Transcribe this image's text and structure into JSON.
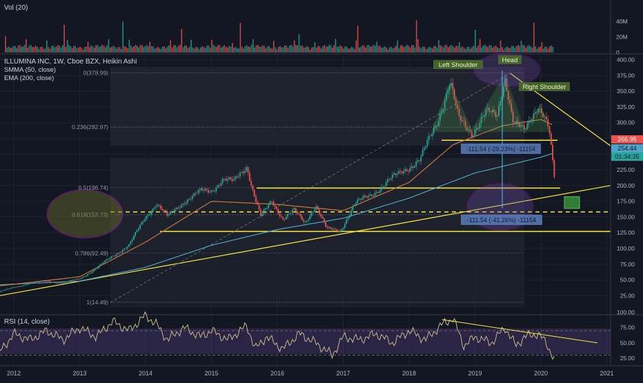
{
  "chart_data": [
    {
      "type": "bar",
      "title": "Vol (20)",
      "y_ticks": [
        "40M",
        "20M",
        "0"
      ],
      "ylim": [
        0,
        50
      ],
      "note_units": "millions"
    },
    {
      "type": "line",
      "symbol_header": "ILLUMINA INC, 1W, Cboe BZX, Heikin Ashi",
      "indicators": [
        "SMMA (50, close)",
        "EMA (200, close)"
      ],
      "x_ticks": [
        "2012",
        "2013",
        "2014",
        "2015",
        "2016",
        "2017",
        "2018",
        "2019",
        "2020",
        "2021"
      ],
      "y_ticks": [
        400,
        375,
        350,
        325,
        300,
        275,
        250,
        225,
        200,
        175,
        150,
        125,
        100,
        75,
        50,
        25
      ],
      "ylim": [
        10,
        405
      ],
      "price_series": {
        "name": "ILLUMINA INC",
        "x": [
          "2011-10-01",
          "2012-01-01",
          "2012-04-01",
          "2012-07-01",
          "2012-10-01",
          "2013-01-01",
          "2013-04-01",
          "2013-07-01",
          "2013-10-01",
          "2014-01-01",
          "2014-03-01",
          "2014-05-01",
          "2014-08-01",
          "2014-11-01",
          "2015-01-01",
          "2015-03-01",
          "2015-05-01",
          "2015-07-15",
          "2015-08-15",
          "2015-10-01",
          "2015-12-01",
          "2016-02-01",
          "2016-04-01",
          "2016-06-01",
          "2016-08-01",
          "2016-10-01",
          "2016-12-15",
          "2017-03-01",
          "2017-06-01",
          "2017-09-01",
          "2017-12-01",
          "2018-03-01",
          "2018-06-01",
          "2018-08-15",
          "2018-10-01",
          "2018-12-15",
          "2019-03-01",
          "2019-05-01",
          "2019-06-15",
          "2019-08-01",
          "2019-10-01",
          "2019-12-15",
          "2020-01-15",
          "2020-02-15",
          "2020-03-15"
        ],
        "values": [
          30,
          38,
          45,
          48,
          45,
          52,
          68,
          88,
          105,
          150,
          172,
          150,
          175,
          190,
          192,
          210,
          205,
          232,
          195,
          150,
          175,
          148,
          160,
          140,
          170,
          130,
          128,
          170,
          185,
          205,
          225,
          240,
          300,
          365,
          305,
          285,
          315,
          310,
          375,
          300,
          285,
          330,
          315,
          290,
          210
        ]
      },
      "smma_50": {
        "x": [
          "2011-10-01",
          "2013-01-01",
          "2014-01-01",
          "2015-01-01",
          "2016-01-01",
          "2017-01-01",
          "2018-01-01",
          "2018-09-01",
          "2019-06-01",
          "2020-01-01",
          "2020-03-15"
        ],
        "values": [
          40,
          55,
          110,
          175,
          170,
          160,
          205,
          265,
          295,
          305,
          295
        ]
      },
      "ema_200": {
        "x": [
          "2011-10-01",
          "2013-01-01",
          "2014-01-01",
          "2015-01-01",
          "2016-01-01",
          "2017-01-01",
          "2018-01-01",
          "2019-01-01",
          "2020-01-01",
          "2020-03-15"
        ],
        "values": [
          42,
          48,
          70,
          105,
          130,
          148,
          180,
          220,
          245,
          252
        ]
      },
      "fib_levels": [
        {
          "label": "0(378.99)",
          "value": 378.99
        },
        {
          "label": "0.236(292.97)",
          "value": 292.97
        },
        {
          "label": "0.5(196.74)",
          "value": 196.74
        },
        {
          "label": "0.618(153.73)",
          "value": 153.73
        },
        {
          "label": "0.786(92.49)",
          "value": 92.49
        },
        {
          "label": "1(14.49)",
          "value": 14.49
        }
      ],
      "annotations": {
        "left_shoulder": "Left Shoulder",
        "head": "Head",
        "right_shoulder": "Right Shoulder",
        "measure_top": "-111.54 (-29.23%) -11154",
        "measure_bottom": "-111.54 (-41.26%) -11154"
      },
      "price_labels": {
        "last": "266.95",
        "ema": "254.44",
        "countdown": "01:34:35"
      },
      "horizontal_lines": [
        272,
        196,
        158,
        127
      ]
    },
    {
      "type": "line",
      "title": "RSI (14, close)",
      "y_ticks": [
        100,
        75,
        50,
        25
      ],
      "ylim": [
        15,
        105
      ],
      "band": [
        30,
        70
      ],
      "series": {
        "x": [
          "2011-10-01",
          "2012-01-01",
          "2012-04-01",
          "2012-07-01",
          "2012-10-01",
          "2013-01-01",
          "2013-04-01",
          "2013-07-01",
          "2013-10-01",
          "2014-01-01",
          "2014-03-01",
          "2014-05-01",
          "2014-08-01",
          "2014-11-01",
          "2015-01-01",
          "2015-04-01",
          "2015-07-15",
          "2015-09-01",
          "2015-11-01",
          "2016-02-01",
          "2016-05-01",
          "2016-08-01",
          "2016-11-01",
          "2017-01-01",
          "2017-04-01",
          "2017-07-01",
          "2017-10-01",
          "2018-01-01",
          "2018-04-01",
          "2018-07-01",
          "2018-09-01",
          "2018-11-01",
          "2019-01-01",
          "2019-04-01",
          "2019-06-15",
          "2019-08-15",
          "2019-10-01",
          "2019-12-15",
          "2020-02-01",
          "2020-03-15"
        ],
        "values": [
          30,
          65,
          55,
          70,
          55,
          75,
          60,
          85,
          70,
          95,
          80,
          55,
          75,
          60,
          70,
          55,
          78,
          40,
          60,
          40,
          65,
          50,
          30,
          60,
          55,
          65,
          50,
          70,
          55,
          80,
          90,
          45,
          60,
          50,
          75,
          45,
          60,
          65,
          50,
          22
        ]
      }
    }
  ]
}
